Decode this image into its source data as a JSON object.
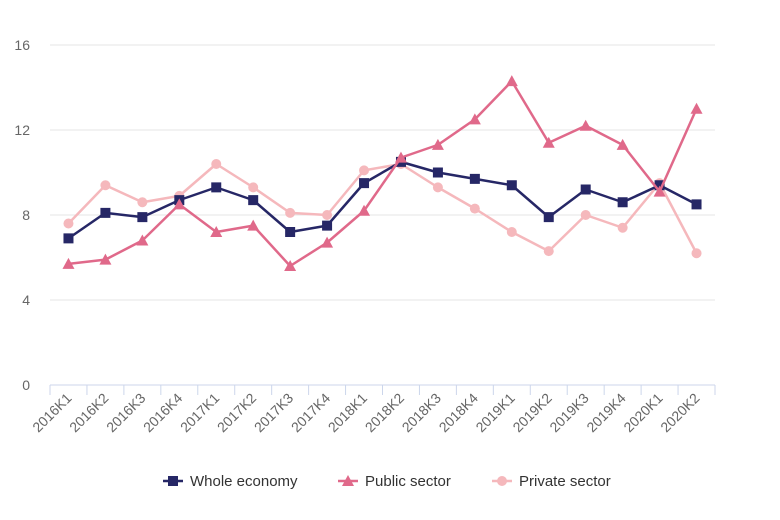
{
  "chart_data": {
    "type": "line",
    "title": "",
    "xlabel": "",
    "ylabel": "",
    "ylim": [
      0,
      16
    ],
    "yticks": [
      0,
      4,
      8,
      12,
      16
    ],
    "grid": true,
    "legend_position": "bottom",
    "categories": [
      "2016K1",
      "2016K2",
      "2016K3",
      "2016K4",
      "2017K1",
      "2017K2",
      "2017K3",
      "2017K4",
      "2018K1",
      "2018K2",
      "2018K3",
      "2018K4",
      "2019K1",
      "2019K2",
      "2019K3",
      "2019K4",
      "2020K1",
      "2020K2"
    ],
    "series": [
      {
        "name": "Whole economy",
        "color": "#262766",
        "marker": "square",
        "values": [
          6.9,
          8.1,
          7.9,
          8.7,
          9.3,
          8.7,
          7.2,
          7.5,
          9.5,
          10.5,
          10.0,
          9.7,
          9.4,
          7.9,
          9.2,
          8.6,
          9.4,
          8.5
        ]
      },
      {
        "name": "Public sector",
        "color": "#e0698a",
        "marker": "triangle",
        "values": [
          5.7,
          5.9,
          6.8,
          8.5,
          7.2,
          7.5,
          5.6,
          6.7,
          8.2,
          10.7,
          11.3,
          12.5,
          14.3,
          11.4,
          12.2,
          11.3,
          9.1,
          13.0
        ]
      },
      {
        "name": "Private sector",
        "color": "#f5b8bc",
        "marker": "circle",
        "values": [
          7.6,
          9.4,
          8.6,
          8.9,
          10.4,
          9.3,
          8.1,
          8.0,
          10.1,
          10.4,
          9.3,
          8.3,
          7.2,
          6.3,
          8.0,
          7.4,
          9.5,
          6.2
        ]
      }
    ]
  }
}
